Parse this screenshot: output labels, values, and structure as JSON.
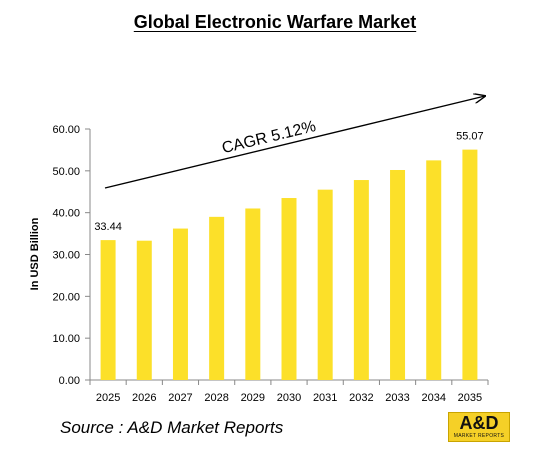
{
  "page": {
    "title": "Global Electronic Warfare Market"
  },
  "source_text": "Source : A&D Market Reports",
  "logo": {
    "text": "A&D",
    "subtext": "MARKET REPORTS",
    "color": "#f5d027"
  },
  "chart_data": {
    "type": "bar",
    "title": "Global Electronic Warfare Market",
    "xlabel": "",
    "ylabel": "In USD Billion",
    "ylim": [
      0,
      60
    ],
    "yticks": [
      "0.00",
      "10.00",
      "20.00",
      "30.00",
      "40.00",
      "50.00",
      "60.00"
    ],
    "categories": [
      "2025",
      "2026",
      "2027",
      "2028",
      "2029",
      "2030",
      "2031",
      "2032",
      "2033",
      "2034",
      "2035"
    ],
    "values": [
      33.44,
      33.3,
      36.2,
      39.0,
      41.0,
      43.5,
      45.5,
      47.8,
      50.2,
      52.5,
      55.07
    ],
    "data_labels": [
      {
        "category": "2025",
        "text": "33.44"
      },
      {
        "category": "2035",
        "text": "55.07"
      }
    ],
    "annotation": "CAGR 5.12%",
    "bar_color": "#fce029",
    "grid": false
  }
}
